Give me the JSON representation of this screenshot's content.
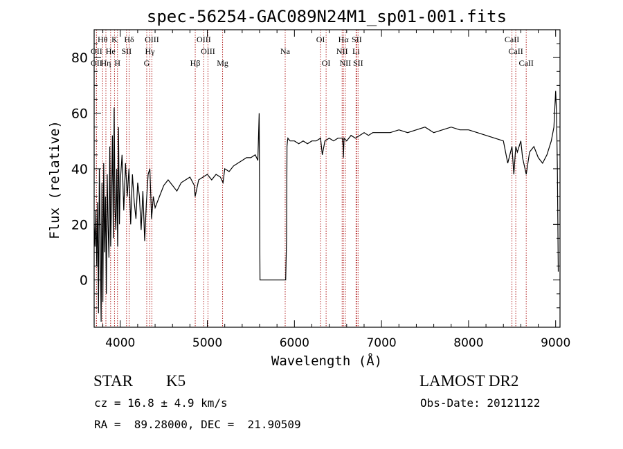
{
  "chart_data": {
    "type": "line",
    "title": "spec-56254-GAC089N24M1_sp01-001.fits",
    "xlabel": "Wavelength (Å)",
    "ylabel": "Flux (relative)",
    "xlim": [
      3700,
      9050
    ],
    "ylim": [
      -17,
      90
    ],
    "xticks": [
      "4000",
      "5000",
      "6000",
      "7000",
      "8000",
      "9000"
    ],
    "yticks": [
      "0",
      "20",
      "40",
      "60",
      "80"
    ],
    "grid": false,
    "series": [
      {
        "color": "#000000",
        "x": [
          3700,
          3710,
          3720,
          3730,
          3740,
          3750,
          3760,
          3770,
          3780,
          3790,
          3800,
          3810,
          3820,
          3830,
          3840,
          3850,
          3860,
          3870,
          3880,
          3890,
          3900,
          3910,
          3920,
          3930,
          3940,
          3950,
          3960,
          3970,
          3980,
          3990,
          4000,
          4020,
          4040,
          4060,
          4080,
          4100,
          4120,
          4140,
          4160,
          4180,
          4200,
          4220,
          4240,
          4260,
          4280,
          4300,
          4320,
          4340,
          4360,
          4380,
          4400,
          4450,
          4500,
          4550,
          4600,
          4650,
          4700,
          4750,
          4800,
          4850,
          4860,
          4900,
          4950,
          5000,
          5050,
          5100,
          5150,
          5180,
          5200,
          5250,
          5300,
          5350,
          5400,
          5450,
          5500,
          5550,
          5580,
          5595,
          5600,
          5605,
          5620,
          5700,
          5800,
          5900,
          5910,
          5915,
          5920,
          5925,
          5950,
          6000,
          6050,
          6100,
          6150,
          6200,
          6250,
          6300,
          6320,
          6350,
          6400,
          6450,
          6500,
          6550,
          6560,
          6563,
          6570,
          6600,
          6650,
          6700,
          6750,
          6800,
          6850,
          6900,
          6950,
          7000,
          7100,
          7200,
          7300,
          7400,
          7500,
          7600,
          7700,
          7800,
          7900,
          8000,
          8100,
          8200,
          8300,
          8400,
          8450,
          8498,
          8520,
          8542,
          8560,
          8600,
          8620,
          8662,
          8700,
          8750,
          8800,
          8850,
          8900,
          8950,
          8980,
          9000,
          9010,
          9020,
          9030
        ],
        "y": [
          20,
          12,
          25,
          5,
          28,
          -12,
          40,
          15,
          -15,
          35,
          -8,
          42,
          10,
          30,
          -5,
          38,
          20,
          8,
          48,
          12,
          30,
          52,
          15,
          62,
          25,
          18,
          40,
          12,
          55,
          20,
          35,
          45,
          25,
          42,
          30,
          40,
          20,
          38,
          28,
          22,
          35,
          30,
          18,
          32,
          14,
          28,
          38,
          40,
          22,
          30,
          26,
          30,
          34,
          36,
          34,
          32,
          35,
          36,
          37,
          34,
          30,
          36,
          37,
          38,
          36,
          38,
          37,
          35,
          40,
          39,
          41,
          42,
          43,
          44,
          44,
          45,
          43,
          60,
          30,
          0,
          0,
          0,
          0,
          0,
          15,
          48,
          50,
          51,
          50,
          50,
          49,
          50,
          49,
          50,
          50,
          51,
          45,
          50,
          51,
          50,
          51,
          51,
          48,
          44,
          51,
          50,
          52,
          51,
          52,
          53,
          52,
          53,
          53,
          53,
          53,
          54,
          53,
          54,
          55,
          53,
          54,
          55,
          54,
          54,
          53,
          52,
          51,
          50,
          42,
          48,
          38,
          48,
          46,
          50,
          44,
          38,
          46,
          48,
          44,
          42,
          45,
          50,
          55,
          68,
          60,
          40,
          3
        ]
      }
    ],
    "lines": [
      {
        "name": "Hθ",
        "wavelength": 3797,
        "row": 1
      },
      {
        "name": "OII",
        "wavelength": 3727,
        "row": 2
      },
      {
        "name": "OII",
        "wavelength": 3727,
        "row": 3
      },
      {
        "name": "Hη",
        "wavelength": 3835,
        "row": 3
      },
      {
        "name": "K",
        "wavelength": 3934,
        "row": 1
      },
      {
        "name": "He",
        "wavelength": 3889,
        "row": 2
      },
      {
        "name": "H",
        "wavelength": 3968,
        "row": 3
      },
      {
        "name": "SII",
        "wavelength": 4072,
        "row": 2
      },
      {
        "name": "Hδ",
        "wavelength": 4102,
        "row": 1
      },
      {
        "name": "OIII",
        "wavelength": 4363,
        "row": 1
      },
      {
        "name": "Hγ",
        "wavelength": 4340,
        "row": 2
      },
      {
        "name": "G",
        "wavelength": 4304,
        "row": 3
      },
      {
        "name": "OIII",
        "wavelength": 4959,
        "row": 1
      },
      {
        "name": "OIII",
        "wavelength": 5007,
        "row": 2
      },
      {
        "name": "Hβ",
        "wavelength": 4861,
        "row": 3
      },
      {
        "name": "Mg",
        "wavelength": 5175,
        "row": 3
      },
      {
        "name": "Na",
        "wavelength": 5894,
        "row": 2
      },
      {
        "name": "OI",
        "wavelength": 6300,
        "row": 1
      },
      {
        "name": "OI",
        "wavelength": 6364,
        "row": 3
      },
      {
        "name": "Hα",
        "wavelength": 6563,
        "row": 1
      },
      {
        "name": "SII",
        "wavelength": 6716,
        "row": 1
      },
      {
        "name": "NII",
        "wavelength": 6548,
        "row": 2
      },
      {
        "name": "Li",
        "wavelength": 6708,
        "row": 2
      },
      {
        "name": "NII",
        "wavelength": 6584,
        "row": 3
      },
      {
        "name": "SII",
        "wavelength": 6731,
        "row": 3
      },
      {
        "name": "CaII",
        "wavelength": 8498,
        "row": 1
      },
      {
        "name": "CaII",
        "wavelength": 8542,
        "row": 2
      },
      {
        "name": "CaII",
        "wavelength": 8662,
        "row": 3
      }
    ]
  },
  "info": {
    "class": "STAR",
    "subclass": "K5",
    "survey": "LAMOST DR2",
    "cz": "cz = 16.8 ± 4.9 km/s",
    "obs_date": "Obs-Date: 20121122",
    "radec": "RA =  89.28000, DEC =  21.90509"
  }
}
